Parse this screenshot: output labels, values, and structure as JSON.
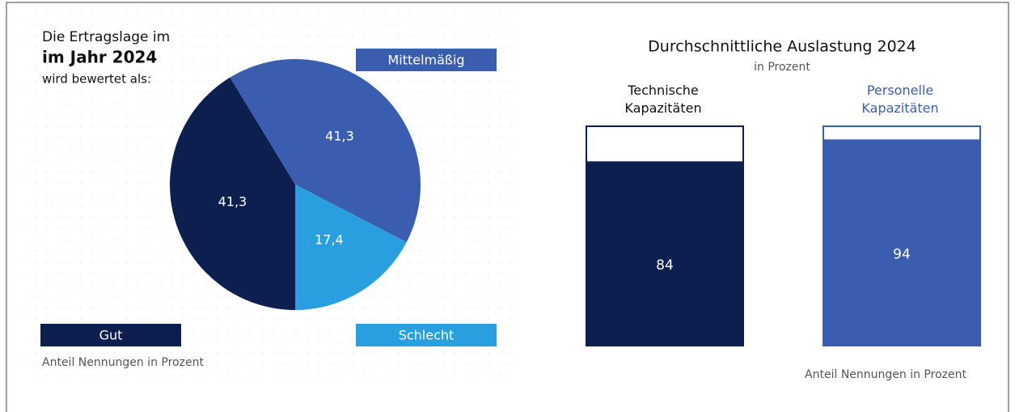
{
  "chart_data": [
    {
      "type": "pie",
      "title_lines": [
        "Die Ertragslage im",
        "im Jahr 2024",
        "wird bewertet als:"
      ],
      "categories": [
        "Gut",
        "Mittelmäßig",
        "Schlecht"
      ],
      "values": [
        41.3,
        41.3,
        17.4
      ],
      "value_labels": [
        "41,3",
        "41,3",
        "17,4"
      ],
      "colors": [
        "#0d1f4f",
        "#3a5db0",
        "#2a9fe0"
      ],
      "note": "Anteil Nennungen in Prozent"
    },
    {
      "type": "bar",
      "title": "Durchschnittliche Auslastung 2024",
      "subtitle": "in Prozent",
      "categories": [
        "Technische Kapazitäten",
        "Personelle Kapazitäten"
      ],
      "values": [
        84,
        94
      ],
      "colors": [
        "#0d1f4f",
        "#3a5db0"
      ],
      "ylim": [
        0,
        100
      ],
      "note": "Anteil Nennungen in Prozent"
    }
  ]
}
